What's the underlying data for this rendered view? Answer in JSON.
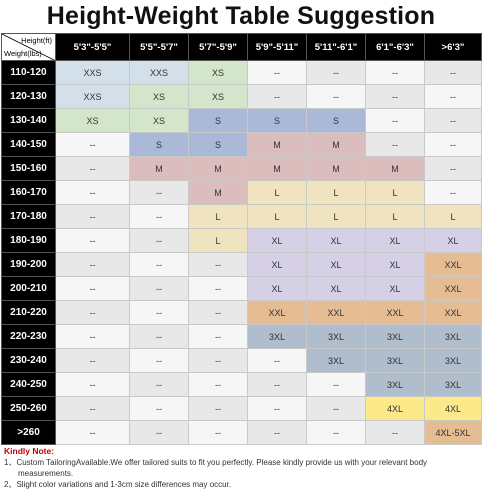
{
  "title": "Height-Weight Table Suggestion",
  "corner": {
    "height_label": "Height(ft)",
    "weight_label": "Weight(lbs)"
  },
  "columns": [
    "5'3\"-5'5\"",
    "5'5\"-5'7\"",
    "5'7\"-5'9\"",
    "5'9\"-5'11\"",
    "5'11\"-6'1\"",
    "6'1\"-6'3\"",
    ">6'3\""
  ],
  "rows": [
    {
      "weight": "110-120",
      "cells": [
        "XXS",
        "XXS",
        "XS",
        "--",
        "--",
        "--",
        "--"
      ]
    },
    {
      "weight": "120-130",
      "cells": [
        "XXS",
        "XS",
        "XS",
        "--",
        "--",
        "--",
        "--"
      ]
    },
    {
      "weight": "130-140",
      "cells": [
        "XS",
        "XS",
        "S",
        "S",
        "S",
        "--",
        "--"
      ]
    },
    {
      "weight": "140-150",
      "cells": [
        "--",
        "S",
        "S",
        "M",
        "M",
        "--",
        "--"
      ]
    },
    {
      "weight": "150-160",
      "cells": [
        "--",
        "M",
        "M",
        "M",
        "M",
        "M",
        "--"
      ]
    },
    {
      "weight": "160-170",
      "cells": [
        "--",
        "--",
        "M",
        "L",
        "L",
        "L",
        "--"
      ]
    },
    {
      "weight": "170-180",
      "cells": [
        "--",
        "--",
        "L",
        "L",
        "L",
        "L",
        "L"
      ]
    },
    {
      "weight": "180-190",
      "cells": [
        "--",
        "--",
        "L",
        "XL",
        "XL",
        "XL",
        "XL"
      ]
    },
    {
      "weight": "190-200",
      "cells": [
        "--",
        "--",
        "--",
        "XL",
        "XL",
        "XL",
        "XXL"
      ]
    },
    {
      "weight": "200-210",
      "cells": [
        "--",
        "--",
        "--",
        "XL",
        "XL",
        "XL",
        "XXL"
      ]
    },
    {
      "weight": "210-220",
      "cells": [
        "--",
        "--",
        "--",
        "XXL",
        "XXL",
        "XXL",
        "XXL"
      ]
    },
    {
      "weight": "220-230",
      "cells": [
        "--",
        "--",
        "--",
        "3XL",
        "3XL",
        "3XL",
        "3XL"
      ]
    },
    {
      "weight": "230-240",
      "cells": [
        "--",
        "--",
        "--",
        "--",
        "3XL",
        "3XL",
        "3XL"
      ]
    },
    {
      "weight": "240-250",
      "cells": [
        "--",
        "--",
        "--",
        "--",
        "--",
        "3XL",
        "3XL"
      ]
    },
    {
      "weight": "250-260",
      "cells": [
        "--",
        "--",
        "--",
        "--",
        "--",
        "4XL",
        "4XL"
      ]
    },
    {
      "weight": ">260",
      "cells": [
        "--",
        "--",
        "--",
        "--",
        "--",
        "--",
        "4XL-5XL"
      ]
    }
  ],
  "size_colors": {
    "XXS": "#d3dfe9",
    "XS": "#d3e6cc",
    "S": "#aab9d8",
    "M": "#dcbdbd",
    "L": "#efe3c0",
    "XL": "#d6d0e6",
    "XXL": "#e6bc92",
    "3XL": "#b0bdcc",
    "4XL": "#fbe98a",
    "4XL-5XL": "#e6bc92",
    "--": "#e8e8e8"
  },
  "empty_white_color": "#f6f6f6",
  "note": {
    "title": "Kindly Note:",
    "lines": [
      "1、Custom TailoringAvailable.We offer tailored suits to fit you perfectly. Please kindly provide us with your relevant body measurements.",
      "2、Slight color variations and 1-3cm size differences may occur."
    ]
  }
}
